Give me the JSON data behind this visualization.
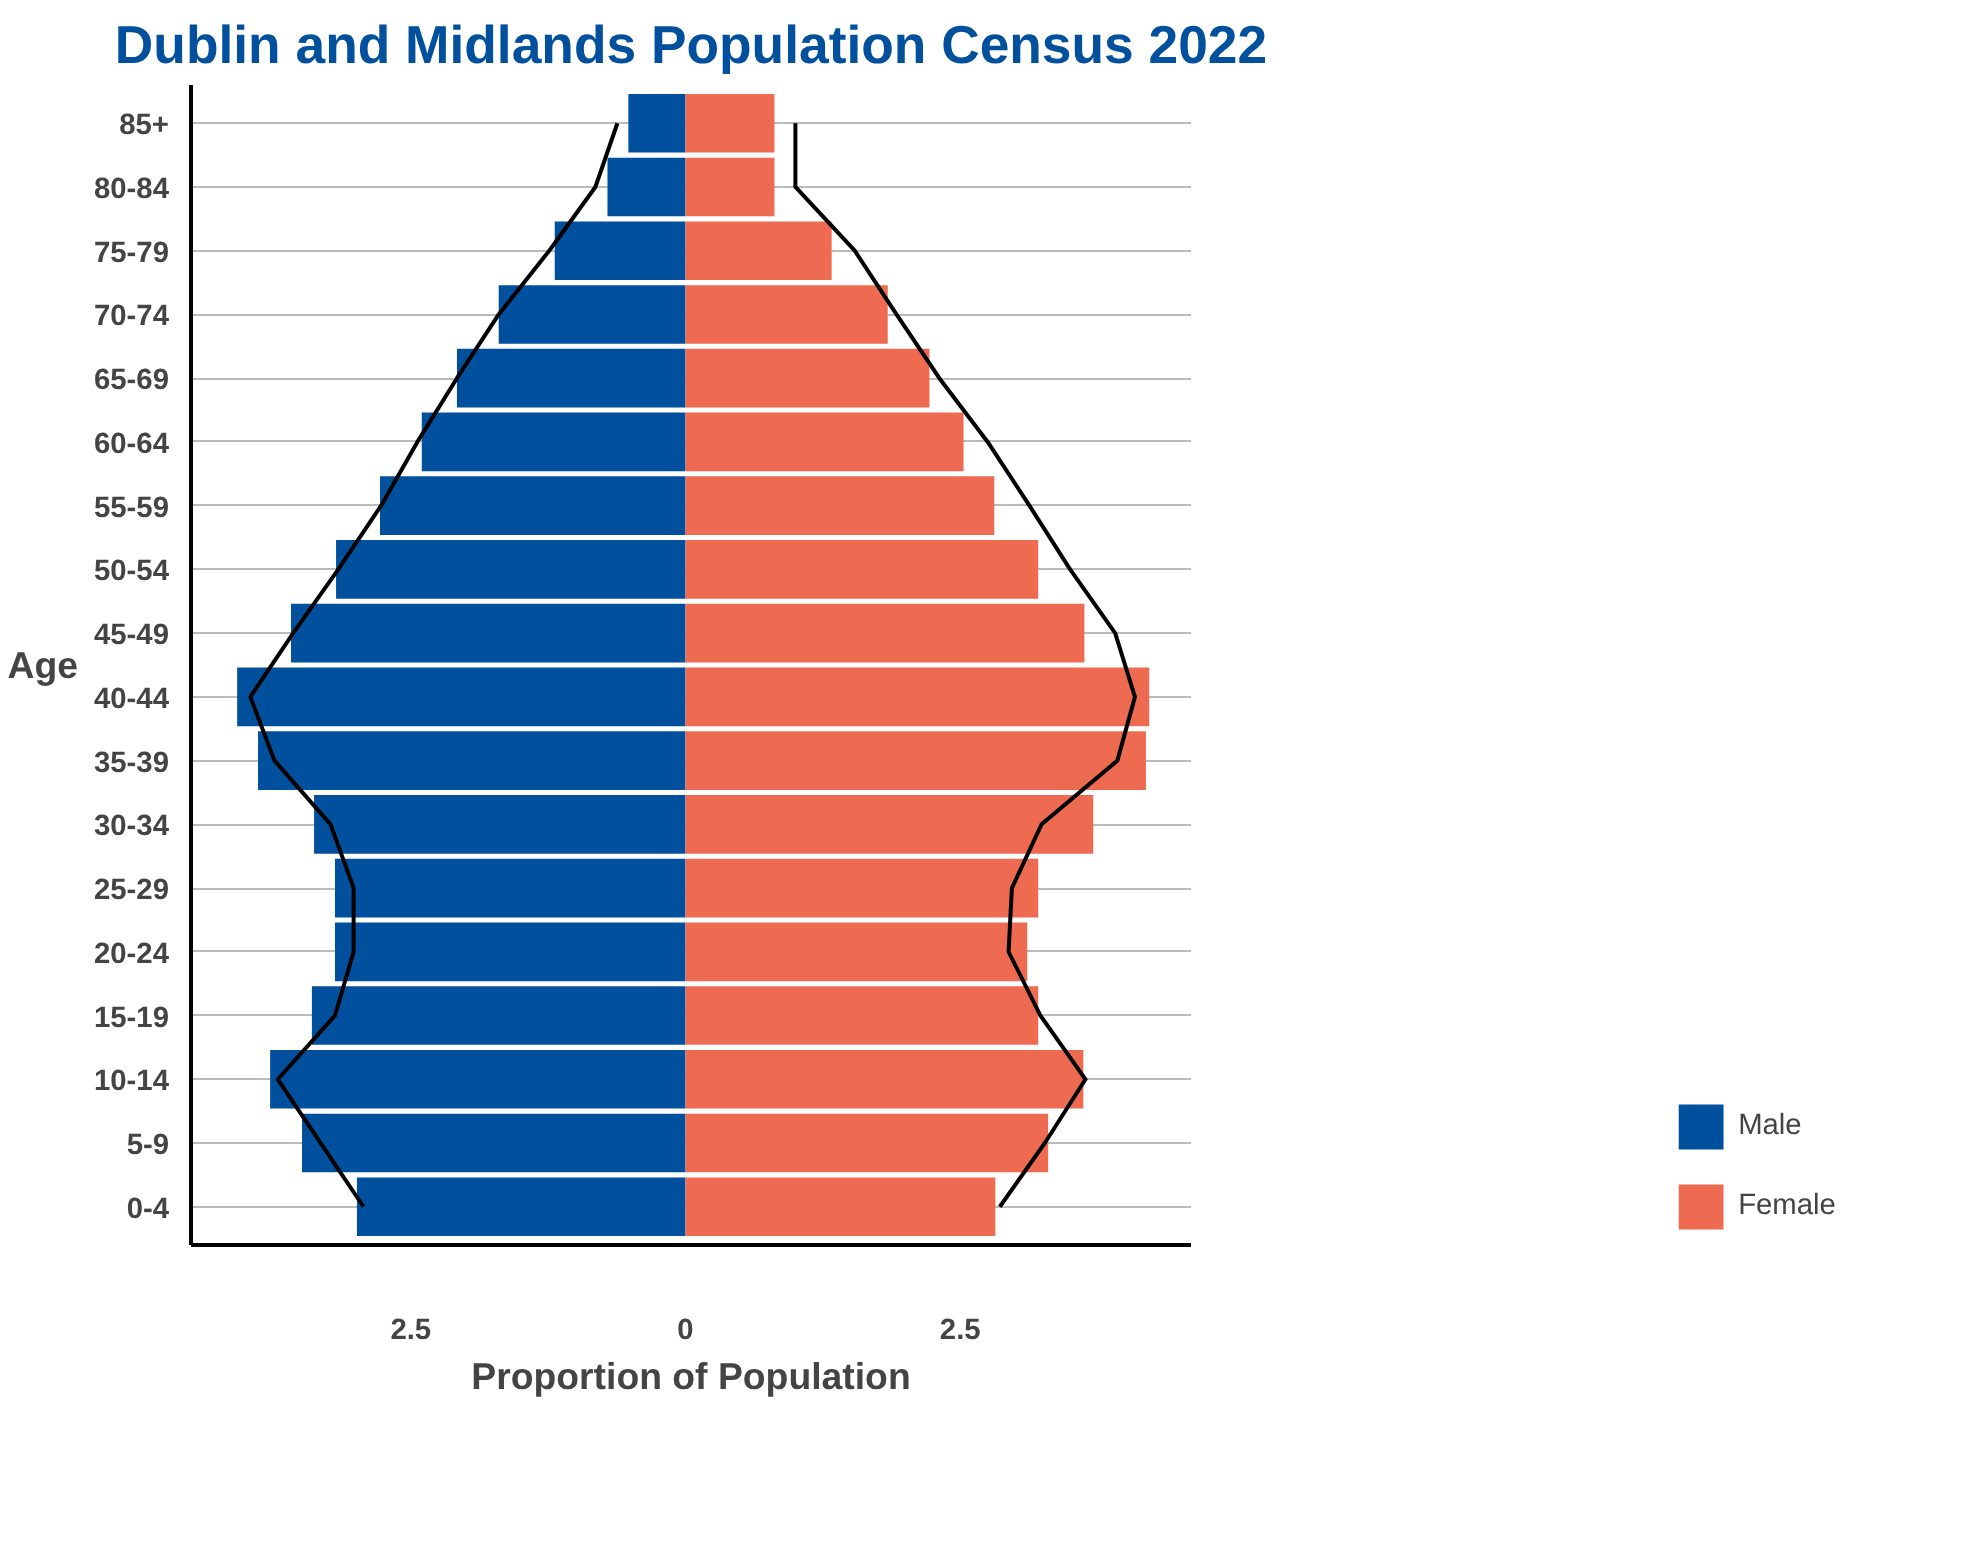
{
  "chart_data": {
    "type": "bar",
    "orientation": "horizontal",
    "stacked": true,
    "title": "Dublin and Midlands Population Census 2022",
    "xlabel": "Proportion of Population",
    "ylabel": "Age",
    "categories": [
      "85+",
      "80-84",
      "75-79",
      "70-74",
      "65-69",
      "60-64",
      "55-59",
      "50-54",
      "45-49",
      "40-44",
      "35-39",
      "30-34",
      "25-29",
      "20-24",
      "15-19",
      "10-14",
      "5-9",
      "0-4"
    ],
    "series": [
      {
        "name": "Male",
        "color": "#00509e",
        "values": [
          -0.52,
          -0.71,
          -1.19,
          -1.7,
          -2.08,
          -2.4,
          -2.78,
          -3.18,
          -3.59,
          -4.08,
          -3.89,
          -3.38,
          -3.19,
          -3.19,
          -3.4,
          -3.78,
          -3.49,
          -2.99
        ]
      },
      {
        "name": "Female",
        "color": "#ee6b52",
        "values": [
          0.81,
          0.81,
          1.33,
          1.84,
          2.22,
          2.53,
          2.81,
          3.21,
          3.63,
          4.22,
          4.19,
          3.71,
          3.21,
          3.11,
          3.21,
          3.62,
          3.3,
          2.82
        ]
      },
      {
        "type": "line",
        "color": "#000000",
        "values": [
          -0.62,
          -0.82,
          -1.24,
          -1.7,
          -2.08,
          -2.44,
          -2.77,
          -3.16,
          -3.57,
          -3.96,
          -3.74,
          -3.23,
          -3.02,
          -3.02,
          -3.19,
          -3.71,
          -3.32,
          -2.93
        ]
      },
      {
        "type": "line",
        "color": "#000000",
        "values": [
          1.0,
          1.0,
          1.54,
          1.92,
          2.31,
          2.75,
          3.13,
          3.5,
          3.91,
          4.09,
          3.93,
          3.24,
          2.97,
          2.94,
          3.23,
          3.64,
          3.27,
          2.86
        ]
      }
    ],
    "xlim": [
      -4.5,
      4.6
    ],
    "xticks": [
      {
        "value": -2.5,
        "label": "2.5"
      },
      0,
      2.5
    ],
    "grid": "y",
    "legend": "bottom right",
    "marker": "none",
    "line_style": "solid"
  }
}
